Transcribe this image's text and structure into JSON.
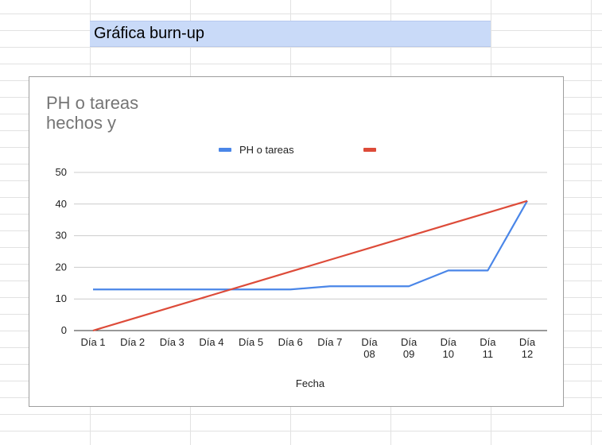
{
  "sheet": {
    "title_cell": "Gráfica burn-up"
  },
  "chart_data": {
    "type": "line",
    "title_lines": [
      "PH o tareas",
      "hechos y"
    ],
    "xlabel": "Fecha",
    "ylabel": "",
    "ylim": [
      0,
      50
    ],
    "yticks": [
      0,
      10,
      20,
      30,
      40,
      50
    ],
    "categories": [
      [
        "Día 1"
      ],
      [
        "Día 2"
      ],
      [
        "Día 3"
      ],
      [
        "Día 4"
      ],
      [
        "Día 5"
      ],
      [
        "Día 6"
      ],
      [
        "Día 7"
      ],
      [
        "Día",
        "08"
      ],
      [
        "Día",
        "09"
      ],
      [
        "Día",
        "10"
      ],
      [
        "Día",
        "11"
      ],
      [
        "Día",
        "12"
      ]
    ],
    "grid": true,
    "legend_position": "top",
    "series": [
      {
        "name": "PH o tareas",
        "color": "#4a86e8",
        "values": [
          13,
          13,
          13,
          13,
          13,
          13,
          14,
          14,
          14,
          19,
          19,
          41
        ]
      },
      {
        "name": "",
        "color": "#dd4b39",
        "values": [
          0,
          3.73,
          7.45,
          11.18,
          14.91,
          18.64,
          22.36,
          26.09,
          29.82,
          33.55,
          37.27,
          41
        ]
      }
    ]
  }
}
